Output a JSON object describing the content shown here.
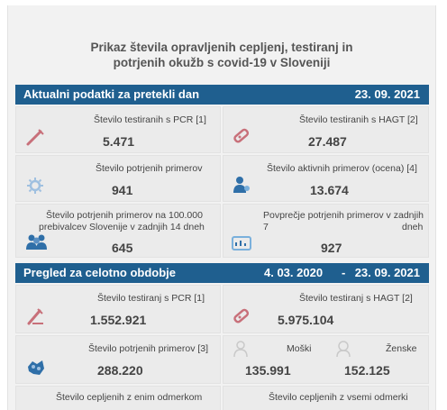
{
  "title_line1": "Prikaz števila opravljenih cepljenj, testiranj in",
  "title_line2": "potrjenih okužb s covid-19 v Sloveniji",
  "section1": {
    "label": "Aktualni podatki za pretekli dan",
    "date": "23. 09. 2021",
    "pcr": {
      "label": "Število testiranih s PCR [1]",
      "value": "5.471"
    },
    "hagt": {
      "label": "Število testiranih s HAGT [2]",
      "value": "27.487"
    },
    "confirmed": {
      "label": "Število potrjenih primerov",
      "value": "941"
    },
    "active": {
      "label": "Število aktivnih primerov (ocena) [4]",
      "value": "13.674"
    },
    "per100k": {
      "label1": "Število potrjenih primerov na 100.000",
      "label2": "prebivalcev Slovenije v zadnjih 14 dneh",
      "value": "645"
    },
    "avg7": {
      "label1": "Povprečje potrjenih primerov v zadnjih 7",
      "label2": "dneh",
      "value": "927"
    }
  },
  "section2": {
    "label": "Pregled za celotno obdobje",
    "date_from": "4. 03. 2020",
    "dash": "-",
    "date_to": "23. 09. 2021",
    "pcr": {
      "label": "Število testiranj s PCR [1]",
      "value": "1.552.921"
    },
    "hagt": {
      "label": "Število testiranj s HAGT [2]",
      "value": "5.975.104"
    },
    "confirmed": {
      "label": "Število potrjenih primerov [3]",
      "value": "288.220"
    },
    "male": {
      "label": "Moški",
      "value": "135.991"
    },
    "female": {
      "label": "Ženske",
      "value": "152.125"
    },
    "vacc_one": {
      "label": "Število cepljenih z enim odmerkom"
    },
    "vacc_all": {
      "label": "Število cepljenih z vsemi odmerki"
    }
  },
  "colors": {
    "bar": "#1f5f8f",
    "icon_red": "#c8707a",
    "icon_blue": "#2f6fa8"
  }
}
